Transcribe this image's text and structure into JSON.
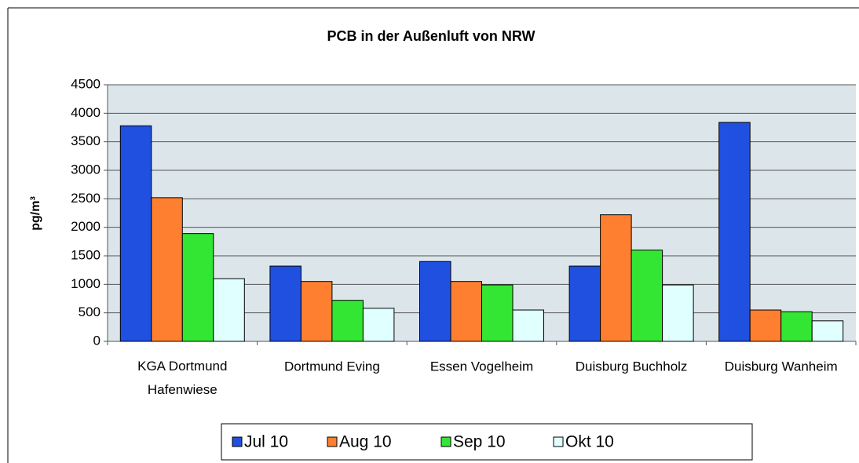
{
  "chart_data": {
    "type": "bar",
    "title": "PCB in der Außenluft von NRW",
    "y_label": "pg/m³",
    "categories": [
      "KGA Dortmund Hafenwiese",
      "Dortmund Eving",
      "Essen Vogelheim",
      "Duisburg Buchholz",
      "Duisburg Wanheim"
    ],
    "series": [
      {
        "name": "Jul 10",
        "color": "#2050e0",
        "values": [
          3780,
          1320,
          1400,
          1320,
          3840
        ]
      },
      {
        "name": "Aug 10",
        "color": "#ff7f30",
        "values": [
          2520,
          1050,
          1050,
          2220,
          550
        ]
      },
      {
        "name": "Sep 10",
        "color": "#33e633",
        "values": [
          1890,
          720,
          990,
          1600,
          520
        ]
      },
      {
        "name": "Okt 10",
        "color": "#e0ffff",
        "values": [
          1100,
          580,
          550,
          990,
          360
        ]
      }
    ],
    "ylim": [
      0,
      4500
    ],
    "yticks": [
      0,
      500,
      1000,
      1500,
      2000,
      2500,
      3000,
      3500,
      4000,
      4500
    ],
    "grid": true,
    "legend": "bottom"
  }
}
